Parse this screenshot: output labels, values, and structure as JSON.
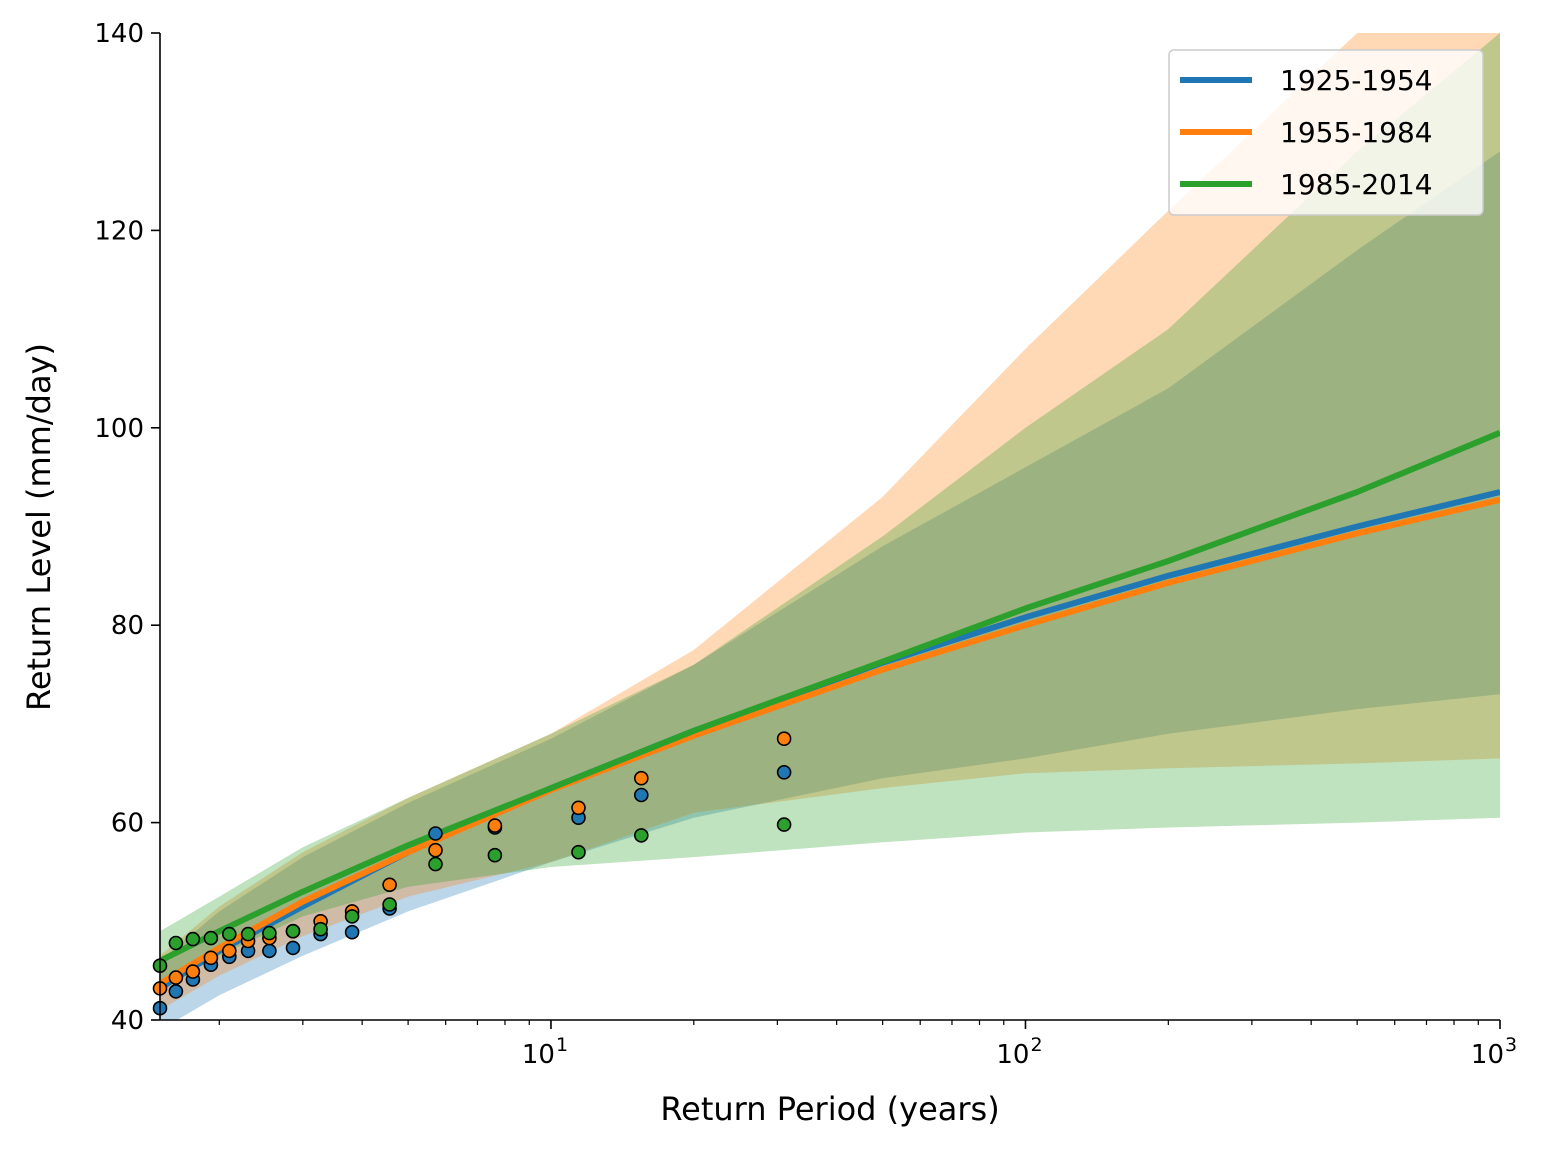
{
  "chart_data": {
    "type": "line",
    "xlabel": "Return Period (years)",
    "ylabel": "Return Level (mm/day)",
    "xscale": "log",
    "xlim": [
      1.5,
      1000
    ],
    "ylim": [
      40,
      140
    ],
    "yticks": [
      40,
      60,
      80,
      100,
      120,
      140
    ],
    "xticks": [
      {
        "value": 10,
        "base": "10",
        "exp": "1"
      },
      {
        "value": 100,
        "base": "10",
        "exp": "2"
      },
      {
        "value": 1000,
        "base": "10",
        "exp": "3"
      }
    ],
    "legend_position": "top-right",
    "series": [
      {
        "name": "1925-1954",
        "color": "#1f77b4",
        "fit": {
          "x": [
            1.5,
            2,
            3,
            5,
            10,
            20,
            50,
            100,
            200,
            500,
            1000
          ],
          "y": [
            43.2,
            47.0,
            51.5,
            57.0,
            63.5,
            69.3,
            76.2,
            80.8,
            85.0,
            90.0,
            93.5
          ]
        },
        "ci_lower": {
          "x": [
            1.5,
            2,
            3,
            5,
            10,
            20,
            50,
            100,
            200,
            500,
            1000
          ],
          "y": [
            39.0,
            42.5,
            46.5,
            51.0,
            56.0,
            60.5,
            64.5,
            66.5,
            69.0,
            71.5,
            73.0
          ]
        },
        "ci_upper": {
          "x": [
            1.5,
            2,
            3,
            5,
            10,
            20,
            50,
            100,
            200,
            500,
            1000
          ],
          "y": [
            46.0,
            51.0,
            56.5,
            62.0,
            68.5,
            76.0,
            88.0,
            96.0,
            104.0,
            118.0,
            128.0
          ]
        },
        "points": {
          "x": [
            1.5,
            1.62,
            1.76,
            1.92,
            2.1,
            2.3,
            2.55,
            2.86,
            3.27,
            3.81,
            4.57,
            5.71,
            7.62,
            11.43,
            15.5,
            31.0
          ],
          "y": [
            41.2,
            42.9,
            44.1,
            45.6,
            46.4,
            47.0,
            47.0,
            47.3,
            48.7,
            48.9,
            51.3,
            58.9,
            59.5,
            60.5,
            62.8,
            65.1
          ]
        }
      },
      {
        "name": "1955-1984",
        "color": "#ff7f0e",
        "fit": {
          "x": [
            1.5,
            2,
            3,
            5,
            10,
            20,
            50,
            100,
            200,
            500,
            1000
          ],
          "y": [
            43.7,
            47.3,
            52.0,
            57.0,
            63.3,
            68.8,
            75.5,
            80.0,
            84.3,
            89.3,
            92.7
          ]
        },
        "ci_lower": {
          "x": [
            1.5,
            2,
            3,
            5,
            10,
            20,
            50,
            100,
            200,
            500,
            1000
          ],
          "y": [
            41.0,
            44.5,
            48.5,
            52.5,
            56.0,
            61.0,
            63.5,
            65.0,
            65.5,
            66.0,
            66.5
          ]
        },
        "ci_upper": {
          "x": [
            1.5,
            2,
            3,
            5,
            10,
            20,
            50,
            100,
            200,
            500,
            1000
          ],
          "y": [
            46.5,
            51.5,
            57.0,
            62.5,
            69.0,
            77.5,
            93.0,
            108.0,
            122.0,
            140.0,
            150.0
          ]
        },
        "points": {
          "x": [
            1.5,
            1.62,
            1.76,
            1.92,
            2.1,
            2.3,
            2.55,
            2.86,
            3.27,
            3.81,
            4.57,
            5.71,
            7.62,
            11.43,
            15.5,
            31.0
          ],
          "y": [
            43.2,
            44.3,
            44.9,
            46.3,
            47.0,
            48.0,
            48.3,
            49.0,
            50.0,
            51.0,
            53.7,
            57.2,
            59.7,
            61.5,
            64.5,
            68.5
          ]
        }
      },
      {
        "name": "1985-2014",
        "color": "#2ca02c",
        "fit": {
          "x": [
            1.5,
            2,
            3,
            5,
            10,
            20,
            50,
            100,
            200,
            500,
            1000
          ],
          "y": [
            46.0,
            49.0,
            53.0,
            57.7,
            63.5,
            69.3,
            76.3,
            81.7,
            86.5,
            93.5,
            99.5
          ]
        },
        "ci_lower": {
          "x": [
            1.5,
            2,
            3,
            5,
            10,
            20,
            50,
            100,
            200,
            500,
            1000
          ],
          "y": [
            43.5,
            46.5,
            50.5,
            53.5,
            55.5,
            56.5,
            58.0,
            59.0,
            59.5,
            60.0,
            60.5
          ]
        },
        "ci_upper": {
          "x": [
            1.5,
            2,
            3,
            5,
            10,
            20,
            50,
            100,
            200,
            500,
            1000
          ],
          "y": [
            49.0,
            52.5,
            57.5,
            62.5,
            69.0,
            76.0,
            89.0,
            100.0,
            110.0,
            128.0,
            140.0
          ]
        },
        "points": {
          "x": [
            1.5,
            1.62,
            1.76,
            1.92,
            2.1,
            2.3,
            2.55,
            2.86,
            3.27,
            3.81,
            4.57,
            5.71,
            7.62,
            11.43,
            15.5,
            31.0
          ],
          "y": [
            45.5,
            47.8,
            48.2,
            48.3,
            48.7,
            48.7,
            48.8,
            49.0,
            49.2,
            50.5,
            51.7,
            55.8,
            56.7,
            57.0,
            58.7,
            59.8
          ]
        }
      }
    ]
  }
}
